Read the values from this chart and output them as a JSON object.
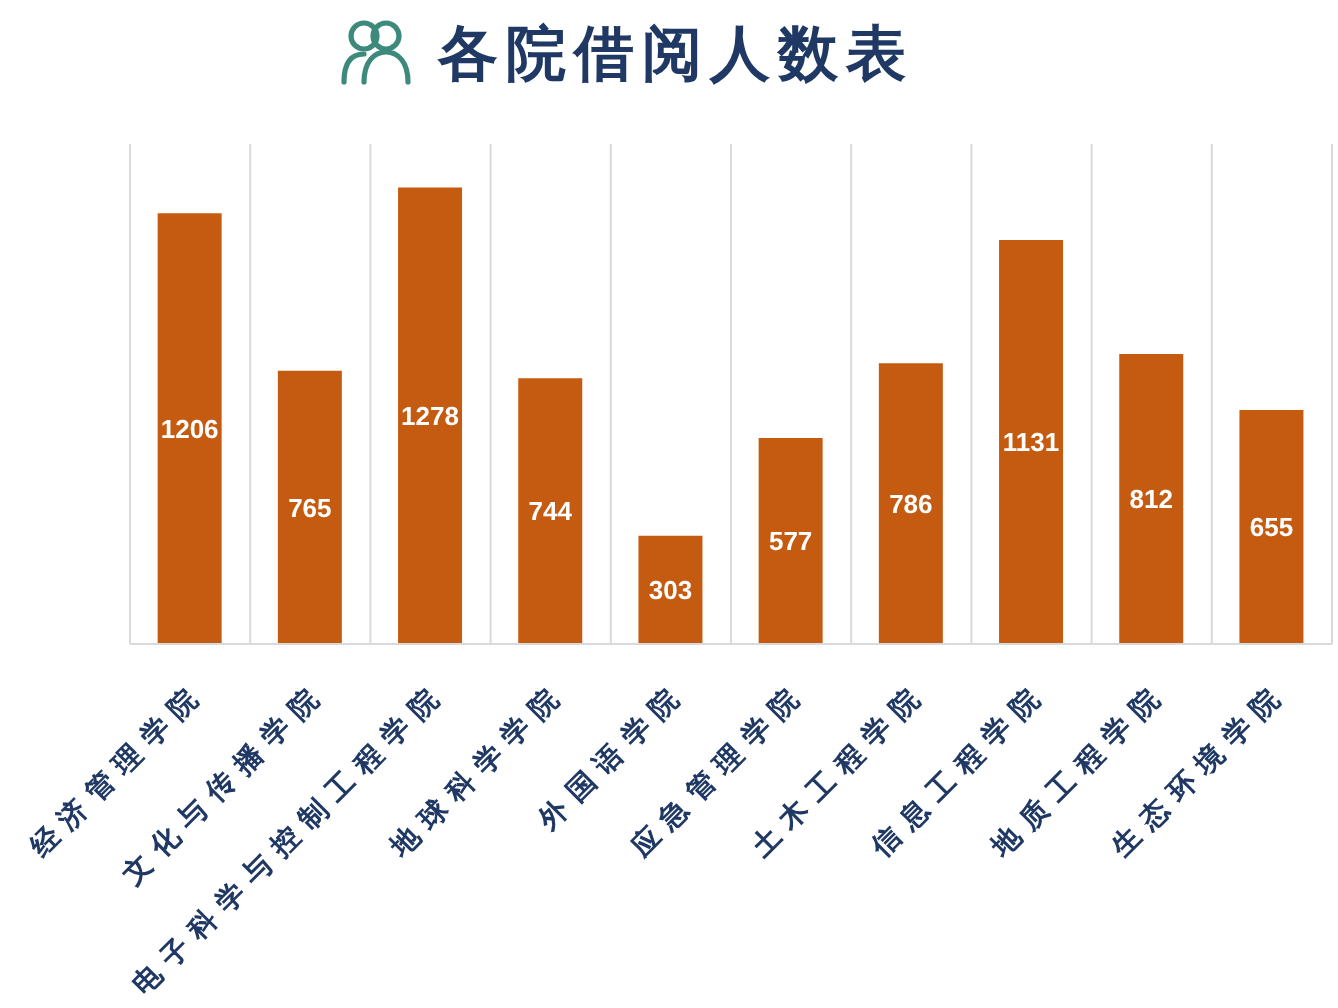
{
  "chart_data": {
    "type": "bar",
    "title": "各院借阅人数表",
    "categories": [
      "经济管理学院",
      "文化与传播学院",
      "电子科学与控制工程学院",
      "地球科学学院",
      "外国语学院",
      "应急管理学院",
      "土木工程学院",
      "信息工程学院",
      "地质工程学院",
      "生态环境学院"
    ],
    "values": [
      1206,
      765,
      1278,
      744,
      303,
      577,
      786,
      1131,
      812,
      655
    ],
    "color": "#c55a11",
    "ylim": [
      0,
      1400
    ],
    "grid": "x",
    "data_labels": true,
    "tick_labels": "x"
  }
}
